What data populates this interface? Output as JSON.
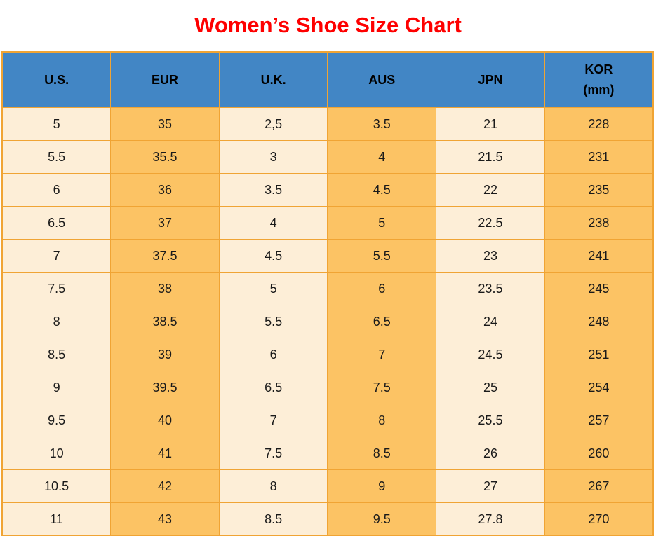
{
  "title": "Women’s Shoe Size Chart",
  "colors": {
    "title_red": "#FE0000",
    "header_blue": "#4286C5",
    "cell_cream": "#FDEED7",
    "cell_orange": "#FCC364",
    "grid_border": "#F0A434",
    "text": "#1A1A1A"
  },
  "chart_data": {
    "type": "table",
    "columns": [
      {
        "line1": "U.S.",
        "line2": ""
      },
      {
        "line1": "EUR",
        "line2": ""
      },
      {
        "line1": "U.K.",
        "line2": ""
      },
      {
        "line1": "AUS",
        "line2": ""
      },
      {
        "line1": "JPN",
        "line2": ""
      },
      {
        "line1": "KOR",
        "line2": "(mm)"
      }
    ],
    "rows": [
      [
        "5",
        "35",
        "2,5",
        "3.5",
        "21",
        "228"
      ],
      [
        "5.5",
        "35.5",
        "3",
        "4",
        "21.5",
        "231"
      ],
      [
        "6",
        "36",
        "3.5",
        "4.5",
        "22",
        "235"
      ],
      [
        "6.5",
        "37",
        "4",
        "5",
        "22.5",
        "238"
      ],
      [
        "7",
        "37.5",
        "4.5",
        "5.5",
        "23",
        "241"
      ],
      [
        "7.5",
        "38",
        "5",
        "6",
        "23.5",
        "245"
      ],
      [
        "8",
        "38.5",
        "5.5",
        "6.5",
        "24",
        "248"
      ],
      [
        "8.5",
        "39",
        "6",
        "7",
        "24.5",
        "251"
      ],
      [
        "9",
        "39.5",
        "6.5",
        "7.5",
        "25",
        "254"
      ],
      [
        "9.5",
        "40",
        "7",
        "8",
        "25.5",
        "257"
      ],
      [
        "10",
        "41",
        "7.5",
        "8.5",
        "26",
        "260"
      ],
      [
        "10.5",
        "42",
        "8",
        "9",
        "27",
        "267"
      ],
      [
        "11",
        "43",
        "8.5",
        "9.5",
        "27.8",
        "270"
      ]
    ]
  }
}
